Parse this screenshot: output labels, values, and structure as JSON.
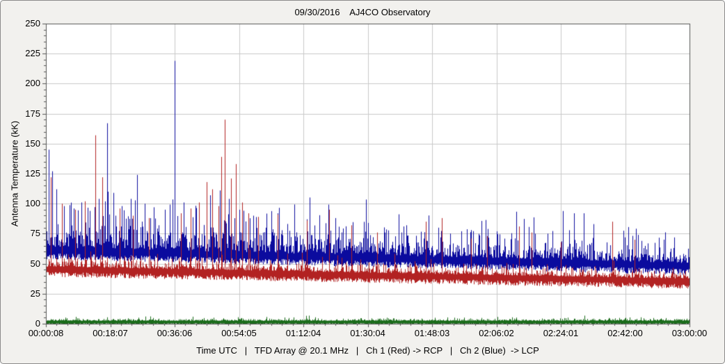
{
  "chart_data": {
    "type": "line",
    "title": "09/30/2016    AJ4CO Observatory",
    "ylabel": "Antenna Temperature (kK)",
    "xlabel": "Time UTC   |   TFD Array @ 20.1 MHz   |   Ch 1 (Red) -> RCP   |   Ch 2 (Blue)  -> LCP",
    "ylim": [
      0,
      250
    ],
    "ytick_step": 25,
    "y_minor_step": 5,
    "x_minor_per_interval": 6,
    "x_ticks": [
      "00:00:08",
      "00:18:07",
      "00:36:06",
      "00:54:05",
      "01:12:04",
      "01:30:04",
      "01:48:03",
      "02:06:02",
      "02:24:01",
      "02:42:00",
      "03:00:00"
    ],
    "grid": true,
    "legend_position": "none",
    "colors": {
      "grid": "#c9c9c9",
      "axis": "#555555",
      "plot_bg": "#ffffff",
      "frame_bg": "#f2f1ee",
      "blue_channel": "#0b0b9e",
      "red_channel": "#b22222",
      "green_trace": "#1a6b1a"
    },
    "series": [
      {
        "name": "Ch 2 (Blue) -> LCP",
        "color": "#0b0b9e",
        "seed": 7,
        "base_start": 62,
        "base_end": 49,
        "down_noise": 6,
        "up_noise": 9,
        "up_fade": [
          1.25,
          0.7
        ],
        "up_cap": 42,
        "spikes": [
          [
            0.004,
            145
          ],
          [
            0.01,
            127
          ],
          [
            0.016,
            112
          ],
          [
            0.028,
            98
          ],
          [
            0.043,
            96
          ],
          [
            0.055,
            101
          ],
          [
            0.068,
            94
          ],
          [
            0.082,
            104
          ],
          [
            0.095,
            167
          ],
          [
            0.105,
            109
          ],
          [
            0.118,
            98
          ],
          [
            0.132,
            104
          ],
          [
            0.142,
            124
          ],
          [
            0.153,
            100
          ],
          [
            0.168,
            97
          ],
          [
            0.185,
            95
          ],
          [
            0.2,
            219
          ],
          [
            0.214,
            101
          ],
          [
            0.232,
            96
          ],
          [
            0.255,
            107
          ],
          [
            0.27,
            111
          ],
          [
            0.284,
            104
          ],
          [
            0.3,
            95
          ],
          [
            0.322,
            90
          ],
          [
            0.36,
            92
          ],
          [
            0.405,
            87
          ],
          [
            0.45,
            88
          ],
          [
            0.5,
            84
          ],
          [
            0.56,
            82
          ],
          [
            0.61,
            80
          ],
          [
            0.66,
            78
          ],
          [
            0.7,
            77
          ],
          [
            0.76,
            75
          ],
          [
            0.82,
            92
          ],
          [
            0.836,
            92
          ],
          [
            0.88,
            72
          ],
          [
            0.92,
            74
          ],
          [
            0.96,
            70
          ]
        ]
      },
      {
        "name": "Ch 1 (Red) -> RCP",
        "color": "#b22222",
        "seed": 13,
        "base_start": 46,
        "base_end": 36,
        "down_noise": 5,
        "up_noise": 2.6,
        "up_fade": [
          1.2,
          0.8
        ],
        "up_cap": 18,
        "spikes": [
          [
            0.008,
            122
          ],
          [
            0.025,
            100
          ],
          [
            0.045,
            95
          ],
          [
            0.06,
            102
          ],
          [
            0.077,
            157
          ],
          [
            0.088,
            122
          ],
          [
            0.115,
            96
          ],
          [
            0.135,
            90
          ],
          [
            0.16,
            88
          ],
          [
            0.21,
            92
          ],
          [
            0.225,
            96
          ],
          [
            0.238,
            101
          ],
          [
            0.25,
            118
          ],
          [
            0.258,
            112
          ],
          [
            0.268,
            98
          ],
          [
            0.272,
            139
          ],
          [
            0.278,
            170
          ],
          [
            0.288,
            121
          ],
          [
            0.295,
            133
          ],
          [
            0.305,
            101
          ],
          [
            0.315,
            92
          ],
          [
            0.33,
            89
          ],
          [
            0.36,
            91
          ],
          [
            0.405,
            86
          ],
          [
            0.44,
            95
          ],
          [
            0.475,
            82
          ],
          [
            0.515,
            76
          ],
          [
            0.59,
            85
          ],
          [
            0.615,
            88
          ],
          [
            0.66,
            71
          ],
          [
            0.685,
            73
          ],
          [
            0.735,
            81
          ],
          [
            0.755,
            76
          ],
          [
            0.8,
            68
          ],
          [
            0.88,
            85
          ],
          [
            0.915,
            70
          ]
        ]
      },
      {
        "name": "Green trace (baseline)",
        "color": "#1a6b1a",
        "seed": 3,
        "base_start": 0.9,
        "base_end": 0.9,
        "down_noise": 0.9,
        "up_noise": 0.7,
        "up_fade": [
          1,
          1
        ],
        "up_cap": 4,
        "spikes": [
          [
            0.02,
            4
          ],
          [
            0.155,
            6
          ],
          [
            0.26,
            5
          ],
          [
            0.3,
            4
          ]
        ]
      }
    ]
  }
}
